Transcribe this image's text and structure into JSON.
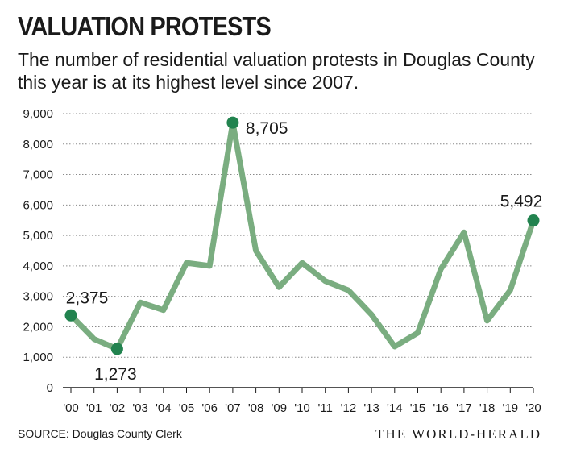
{
  "header": {
    "title": "VALUATION PROTESTS",
    "subtitle": "The number of residential valuation protests in Douglas County this year is at its highest level since 2007."
  },
  "footer": {
    "source": "SOURCE: Douglas County Clerk",
    "credit": "THE WORLD-HERALD"
  },
  "colors": {
    "line": "#7aad80",
    "marker": "#22834f",
    "axis": "#1a1a1a",
    "grid": "#8a8a8a"
  },
  "chart_data": {
    "type": "line",
    "x": [
      "'00",
      "'01",
      "'02",
      "'03",
      "'04",
      "'05",
      "'06",
      "'07",
      "'08",
      "'09",
      "'10",
      "'11",
      "'12",
      "'13",
      "'14",
      "'15",
      "'16",
      "'17",
      "'18",
      "'19",
      "'20"
    ],
    "series": [
      {
        "values": [
          2375,
          1600,
          1273,
          2800,
          2550,
          4100,
          4000,
          8705,
          4500,
          3300,
          4100,
          3500,
          3200,
          2400,
          1350,
          1800,
          3900,
          5100,
          2200,
          3200,
          5492
        ]
      }
    ],
    "ylim": [
      0,
      9000
    ],
    "yticks": [
      "0",
      "1,000",
      "2,000",
      "3,000",
      "4,000",
      "5,000",
      "6,000",
      "7,000",
      "8,000",
      "9,000"
    ],
    "ytick_values": [
      0,
      1000,
      2000,
      3000,
      4000,
      5000,
      6000,
      7000,
      8000,
      9000
    ],
    "grid": true,
    "highlights": [
      {
        "index": 0,
        "label": "2,375"
      },
      {
        "index": 2,
        "label": "1,273"
      },
      {
        "index": 7,
        "label": "8,705"
      },
      {
        "index": 20,
        "label": "5,492"
      }
    ]
  }
}
